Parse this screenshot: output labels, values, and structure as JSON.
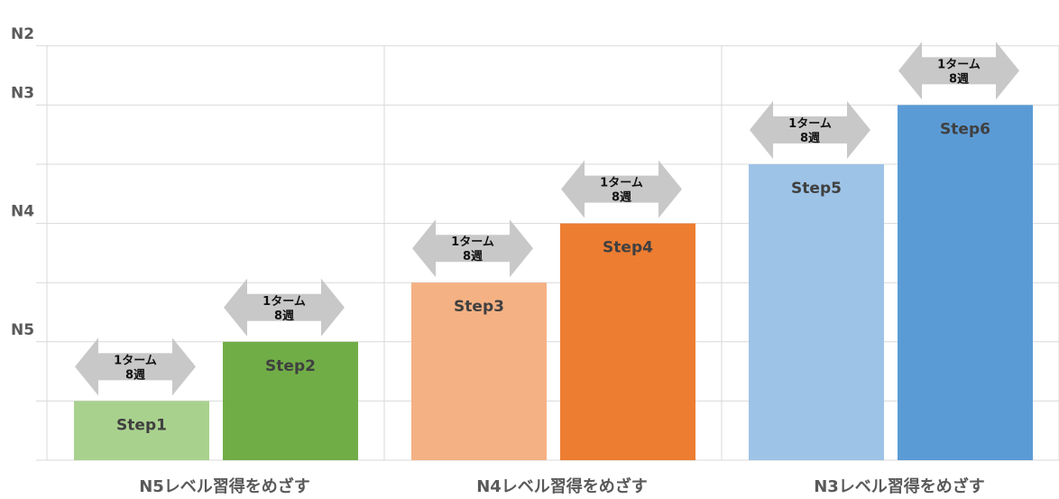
{
  "chart_data": {
    "type": "bar",
    "title": "",
    "xlabel": "",
    "ylabel": "",
    "y_levels": [
      "N5",
      "N4",
      "N3",
      "N2"
    ],
    "grid": true,
    "legend": "none",
    "groups": [
      {
        "label": "N5レベル習得をめざす",
        "bars": [
          {
            "name": "Step1",
            "value": 1,
            "color": "#a9d18e"
          },
          {
            "name": "Step2",
            "value": 2,
            "color": "#70ad47"
          }
        ]
      },
      {
        "label": "N4レベル習得をめざす",
        "bars": [
          {
            "name": "Step3",
            "value": 3,
            "color": "#f4b183"
          },
          {
            "name": "Step4",
            "value": 4,
            "color": "#ed7d31"
          }
        ]
      },
      {
        "label": "N3レベル習得をめざす",
        "bars": [
          {
            "name": "Step5",
            "value": 5,
            "color": "#9dc3e6"
          },
          {
            "name": "Step6",
            "value": 6,
            "color": "#5b9bd5"
          }
        ]
      }
    ],
    "arrow_label": {
      "line1": "1ターム",
      "line2": "8週"
    },
    "arrow_color": "#c8c8c8"
  }
}
